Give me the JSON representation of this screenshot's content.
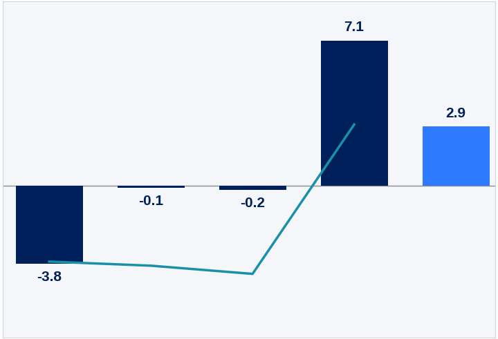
{
  "chart_data": {
    "type": "bar",
    "categories": [
      null,
      null,
      null,
      null,
      null
    ],
    "series": [
      {
        "type": "bar",
        "values": [
          -3.8,
          -0.1,
          -0.2,
          7.1,
          2.9
        ],
        "colors": [
          "#00205B",
          "#00205B",
          "#00205B",
          "#00205B",
          "#2F7BFF"
        ]
      },
      {
        "type": "line",
        "values": [
          -3.7,
          -3.9,
          -4.3,
          3.0,
          null
        ],
        "color": "#1A8FA8",
        "line_style": "solid"
      }
    ],
    "ylim": [
      -7.4,
      9.0
    ],
    "yticks": [
      0
    ],
    "grid": true,
    "data_labels": true,
    "tick_labels": false
  }
}
